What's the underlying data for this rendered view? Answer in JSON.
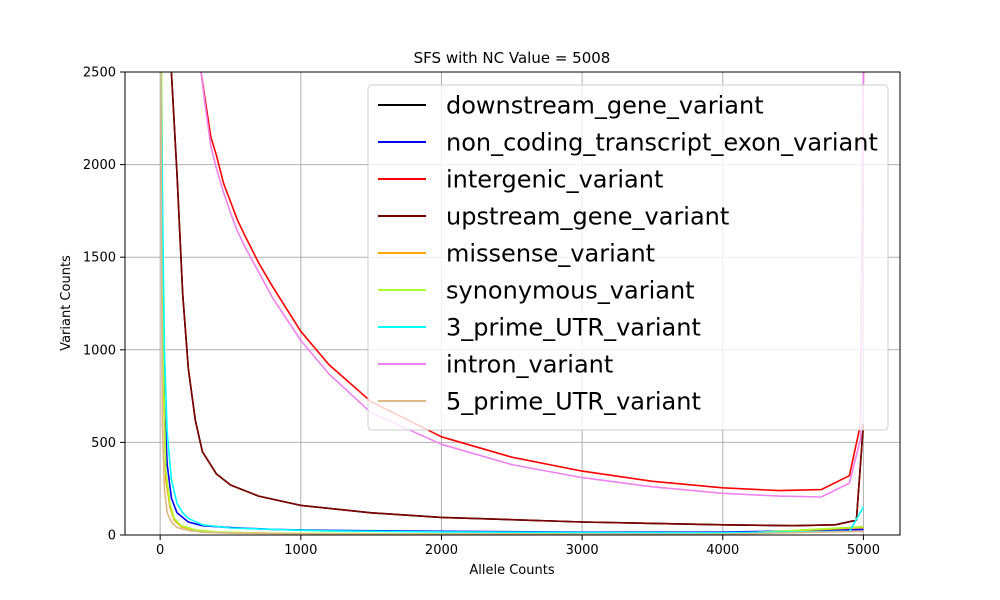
{
  "chart_data": {
    "type": "line",
    "title": "SFS with NC Value = 5008",
    "xlabel": "Allele Counts",
    "ylabel": "Variant Counts",
    "xlim": [
      -250,
      5260
    ],
    "ylim": [
      0,
      2500
    ],
    "xticks": [
      0,
      1000,
      2000,
      3000,
      4000,
      5000
    ],
    "yticks": [
      0,
      500,
      1000,
      1500,
      2000,
      2500
    ],
    "grid": true,
    "legend_position": "upper right",
    "series": [
      {
        "name": "downstream_gene_variant",
        "color": "#000000",
        "x": [
          80,
          120,
          160,
          200,
          250,
          300,
          400,
          500,
          700,
          1000,
          1500,
          2000,
          3000,
          4000,
          4500,
          4800,
          4950,
          5000
        ],
        "y": [
          2500,
          1950,
          1300,
          900,
          620,
          450,
          330,
          270,
          210,
          160,
          120,
          95,
          70,
          55,
          50,
          55,
          80,
          600
        ]
      },
      {
        "name": "non_coding_transcript_exon_variant",
        "color": "#0000ff",
        "x": [
          8,
          15,
          30,
          50,
          80,
          120,
          200,
          300,
          500,
          800,
          1200,
          2000,
          3000,
          4000,
          5000
        ],
        "y": [
          2500,
          1500,
          700,
          380,
          200,
          120,
          70,
          50,
          40,
          30,
          25,
          20,
          15,
          15,
          30
        ]
      },
      {
        "name": "intergenic_variant",
        "color": "#ff0000",
        "x": [
          290,
          320,
          360,
          400,
          450,
          500,
          550,
          600,
          700,
          800,
          1000,
          1200,
          1500,
          2000,
          2500,
          3000,
          3500,
          4000,
          4400,
          4700,
          4900,
          4980,
          5000
        ],
        "y": [
          2500,
          2350,
          2150,
          2050,
          1900,
          1800,
          1700,
          1620,
          1470,
          1340,
          1100,
          920,
          720,
          530,
          420,
          345,
          290,
          255,
          240,
          245,
          320,
          600,
          2500
        ]
      },
      {
        "name": "upstream_gene_variant",
        "color": "#800000",
        "x": [
          80,
          120,
          160,
          200,
          250,
          300,
          400,
          500,
          700,
          1000,
          1500,
          2000,
          3000,
          4000,
          4500,
          4800,
          4950,
          5000
        ],
        "y": [
          2500,
          1950,
          1300,
          900,
          620,
          450,
          330,
          270,
          210,
          160,
          120,
          95,
          70,
          55,
          50,
          55,
          80,
          600
        ]
      },
      {
        "name": "missense_variant",
        "color": "#ffa500",
        "x": [
          10,
          20,
          40,
          70,
          100,
          150,
          250,
          400,
          700,
          1000,
          2000,
          3000,
          4000,
          5000
        ],
        "y": [
          2500,
          900,
          300,
          150,
          80,
          45,
          25,
          15,
          10,
          8,
          5,
          5,
          5,
          40
        ]
      },
      {
        "name": "synonymous_variant",
        "color": "#adff2f",
        "x": [
          10,
          20,
          40,
          70,
          100,
          150,
          250,
          400,
          700,
          1000,
          2000,
          3000,
          4000,
          5000
        ],
        "y": [
          2500,
          1000,
          350,
          170,
          90,
          50,
          28,
          17,
          11,
          9,
          6,
          5,
          5,
          45
        ]
      },
      {
        "name": "3_prime_UTR_variant",
        "color": "#00ffff",
        "x": [
          5,
          15,
          30,
          50,
          80,
          120,
          160,
          200,
          300,
          500,
          800,
          1200,
          2000,
          3000,
          4000,
          4900,
          5000
        ],
        "y": [
          2500,
          1900,
          1000,
          550,
          300,
          170,
          120,
          90,
          55,
          38,
          30,
          22,
          17,
          13,
          12,
          20,
          150
        ]
      },
      {
        "name": "intron_variant",
        "color": "#ee82ee",
        "x": [
          290,
          320,
          360,
          400,
          450,
          500,
          550,
          600,
          700,
          800,
          1000,
          1200,
          1500,
          2000,
          2500,
          3000,
          3500,
          4000,
          4400,
          4700,
          4900,
          4980,
          5000
        ],
        "y": [
          2500,
          2320,
          2100,
          1980,
          1850,
          1740,
          1640,
          1560,
          1420,
          1280,
          1050,
          870,
          660,
          490,
          380,
          310,
          260,
          225,
          210,
          205,
          280,
          520,
          2500
        ]
      },
      {
        "name": "5_prime_UTR_variant",
        "color": "#deb887",
        "x": [
          5,
          15,
          30,
          50,
          80,
          120,
          200,
          300,
          500,
          800,
          1200,
          2000,
          3000,
          4000,
          5000
        ],
        "y": [
          2500,
          600,
          250,
          120,
          70,
          40,
          25,
          15,
          10,
          8,
          6,
          5,
          5,
          5,
          20
        ]
      }
    ]
  }
}
